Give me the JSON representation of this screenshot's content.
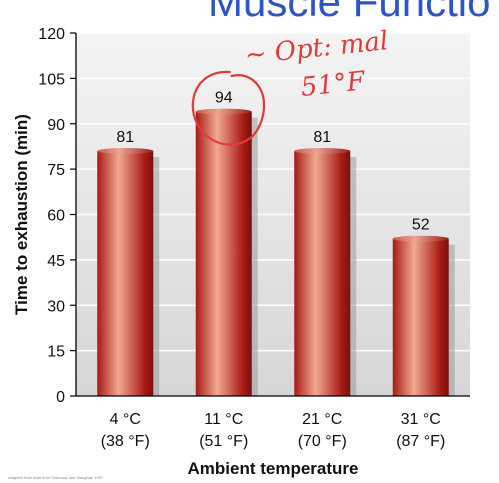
{
  "header": {
    "title_partial": "Muscle Functio",
    "footnote": "Adapted from data from Galloway and Maughan 1997."
  },
  "chart_data": {
    "type": "bar",
    "categories": [
      [
        "4 °C",
        "(38 °F)"
      ],
      [
        "11 °C",
        "(51 °F)"
      ],
      [
        "21 °C",
        "(70 °F)"
      ],
      [
        "31 °C",
        "(87 °F)"
      ]
    ],
    "values": [
      81,
      94,
      81,
      52
    ],
    "data_labels": [
      "81",
      "94",
      "81",
      "52"
    ],
    "xlabel": "Ambient temperature",
    "ylabel": "Time to exhaustion (min)",
    "ylim": [
      0,
      120
    ],
    "yticks": [
      0,
      15,
      30,
      45,
      60,
      75,
      90,
      105,
      120
    ],
    "grid": true,
    "colors": {
      "bar_dark": "#a81a14",
      "bar_light": "#f1a98f",
      "plot_bg_top": "#f4f4f4",
      "plot_bg_bottom": "#d6d6d6",
      "grid": "#ffffff",
      "annotation": "#e03a3a"
    },
    "annotation": {
      "text_line1": "~ Opt: mal",
      "text_line2": "51°F",
      "circled_category": "11 °C"
    }
  }
}
